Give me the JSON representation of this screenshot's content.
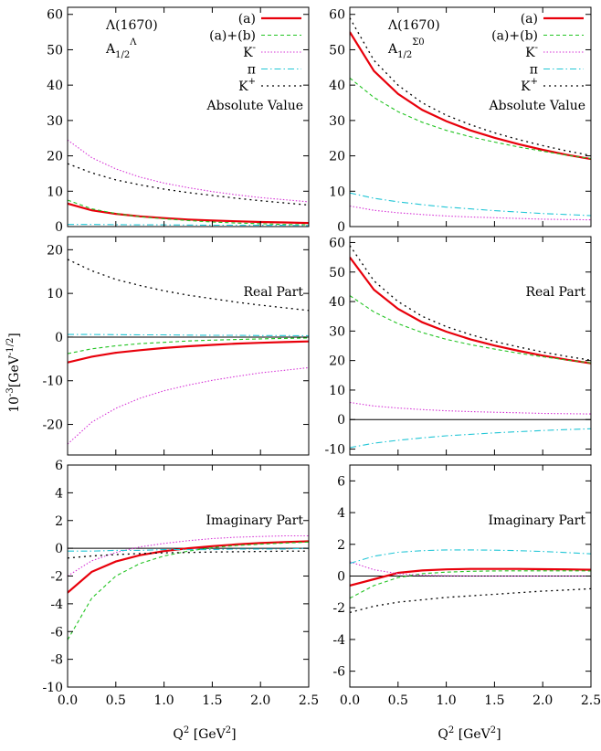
{
  "figure": {
    "ylabel_main": "10",
    "ylabel_sup1": "-3",
    "ylabel_mid": "[GeV",
    "ylabel_sup2": "-1/2",
    "ylabel_end": "]",
    "xlabel_main": "Q",
    "xlabel_sup1": "2",
    "xlabel_mid": " [GeV",
    "xlabel_sup2": "2",
    "xlabel_end": "]"
  },
  "colors": {
    "a": "#e8000b",
    "ab": "#22c422",
    "kminus": "#d633d6",
    "pi": "#22c6d6",
    "kplus": "#000000"
  },
  "legend_entries": [
    {
      "key": "a",
      "label": "(a)",
      "sup": ""
    },
    {
      "key": "ab",
      "label": "(a)+(b)",
      "sup": ""
    },
    {
      "key": "kminus",
      "label": "K",
      "sup": "-"
    },
    {
      "key": "pi",
      "label": "π",
      "sup": ""
    },
    {
      "key": "kplus",
      "label": "K",
      "sup": "+"
    }
  ],
  "chart_data": [
    {
      "type": "line",
      "col": 0,
      "row": 0,
      "title": "Absolute Value",
      "state_label": "Λ(1670)",
      "amp_label": "A",
      "amp_sub": "1/2",
      "amp_sup": "Λ",
      "legend": true,
      "xlim": [
        0,
        2.5
      ],
      "ylim": [
        0,
        62
      ],
      "xticks": [],
      "yticks": [
        0,
        10,
        20,
        30,
        40,
        50,
        60
      ],
      "x": [
        0,
        0.25,
        0.5,
        0.75,
        1.0,
        1.25,
        1.5,
        1.75,
        2.0,
        2.25,
        2.5
      ],
      "series": [
        {
          "key": "a",
          "values": [
            6.5,
            4.6,
            3.6,
            2.9,
            2.4,
            2.0,
            1.7,
            1.5,
            1.3,
            1.15,
            1.0
          ]
        },
        {
          "key": "ab",
          "values": [
            7.5,
            5.0,
            3.7,
            2.8,
            2.2,
            1.7,
            1.3,
            1.0,
            0.8,
            0.6,
            0.5
          ]
        },
        {
          "key": "kminus",
          "values": [
            24.5,
            19.5,
            16.3,
            14.0,
            12.3,
            11.0,
            9.9,
            9.0,
            8.2,
            7.6,
            7.0
          ]
        },
        {
          "key": "pi",
          "values": [
            0.6,
            0.6,
            0.55,
            0.5,
            0.5,
            0.45,
            0.4,
            0.4,
            0.35,
            0.35,
            0.3
          ]
        },
        {
          "key": "kplus",
          "values": [
            17.8,
            15.2,
            13.2,
            11.8,
            10.6,
            9.6,
            8.8,
            8.0,
            7.3,
            6.7,
            6.1
          ]
        }
      ]
    },
    {
      "type": "line",
      "col": 1,
      "row": 0,
      "title": "Absolute Value",
      "state_label": "Λ(1670)",
      "amp_label": "A",
      "amp_sub": "1/2",
      "amp_sup": "Σ0",
      "legend": true,
      "xlim": [
        0,
        2.5
      ],
      "ylim": [
        0,
        62
      ],
      "xticks": [],
      "yticks": [
        0,
        10,
        20,
        30,
        40,
        50,
        60
      ],
      "x": [
        0,
        0.25,
        0.5,
        0.75,
        1.0,
        1.25,
        1.5,
        1.75,
        2.0,
        2.25,
        2.5
      ],
      "series": [
        {
          "key": "a",
          "values": [
            55,
            44,
            37.5,
            33,
            29.8,
            27.2,
            25.1,
            23.3,
            21.7,
            20.3,
            19.1
          ]
        },
        {
          "key": "ab",
          "values": [
            42,
            36.5,
            32.5,
            29.5,
            27.2,
            25.4,
            23.9,
            22.5,
            21.3,
            20.2,
            19.2
          ]
        },
        {
          "key": "kminus",
          "values": [
            5.8,
            4.6,
            3.9,
            3.4,
            3.0,
            2.7,
            2.5,
            2.3,
            2.1,
            2.0,
            1.9
          ]
        },
        {
          "key": "pi",
          "values": [
            9.5,
            8.0,
            7.0,
            6.2,
            5.5,
            5.0,
            4.5,
            4.1,
            3.7,
            3.4,
            3.1
          ]
        },
        {
          "key": "kplus",
          "values": [
            59,
            47,
            40,
            35,
            31.5,
            28.8,
            26.5,
            24.6,
            22.9,
            21.4,
            20.1
          ]
        }
      ]
    },
    {
      "type": "line",
      "col": 0,
      "row": 1,
      "title": "Real Part",
      "legend": false,
      "xlim": [
        0,
        2.5
      ],
      "ylim": [
        -27,
        23
      ],
      "xticks": [],
      "yticks": [
        -20,
        -10,
        0,
        10,
        20
      ],
      "x": [
        0,
        0.25,
        0.5,
        0.75,
        1.0,
        1.25,
        1.5,
        1.75,
        2.0,
        2.25,
        2.5
      ],
      "series": [
        {
          "key": "a",
          "values": [
            -5.8,
            -4.5,
            -3.6,
            -3.0,
            -2.5,
            -2.1,
            -1.8,
            -1.5,
            -1.3,
            -1.15,
            -1.0
          ]
        },
        {
          "key": "ab",
          "values": [
            -3.8,
            -2.7,
            -2.0,
            -1.5,
            -1.2,
            -0.9,
            -0.7,
            -0.55,
            -0.4,
            -0.3,
            -0.2
          ]
        },
        {
          "key": "kminus",
          "values": [
            -24.5,
            -19.5,
            -16.3,
            -14.0,
            -12.3,
            -11.0,
            -9.9,
            -9.0,
            -8.2,
            -7.6,
            -7.0
          ]
        },
        {
          "key": "pi",
          "values": [
            0.6,
            0.6,
            0.55,
            0.5,
            0.5,
            0.45,
            0.4,
            0.4,
            0.35,
            0.35,
            0.3
          ]
        },
        {
          "key": "kplus",
          "values": [
            17.8,
            15.2,
            13.2,
            11.8,
            10.6,
            9.6,
            8.8,
            8.0,
            7.3,
            6.7,
            6.1
          ]
        }
      ]
    },
    {
      "type": "line",
      "col": 1,
      "row": 1,
      "title": "Real Part",
      "legend": false,
      "xlim": [
        0,
        2.5
      ],
      "ylim": [
        -12,
        62
      ],
      "xticks": [],
      "yticks": [
        -10,
        0,
        10,
        20,
        30,
        40,
        50,
        60
      ],
      "x": [
        0,
        0.25,
        0.5,
        0.75,
        1.0,
        1.25,
        1.5,
        1.75,
        2.0,
        2.25,
        2.5
      ],
      "series": [
        {
          "key": "a",
          "values": [
            55,
            44,
            37.5,
            33,
            29.8,
            27.2,
            25.1,
            23.3,
            21.7,
            20.3,
            19.1
          ]
        },
        {
          "key": "ab",
          "values": [
            42,
            36.5,
            32.5,
            29.5,
            27.2,
            25.4,
            23.9,
            22.5,
            21.3,
            20.2,
            19.2
          ]
        },
        {
          "key": "kminus",
          "values": [
            5.8,
            4.6,
            3.9,
            3.4,
            3.0,
            2.7,
            2.5,
            2.3,
            2.1,
            2.0,
            1.9
          ]
        },
        {
          "key": "pi",
          "values": [
            -9.5,
            -8.0,
            -7.0,
            -6.2,
            -5.5,
            -5.0,
            -4.5,
            -4.1,
            -3.7,
            -3.4,
            -3.1
          ]
        },
        {
          "key": "kplus",
          "values": [
            59,
            47,
            40,
            35,
            31.5,
            28.8,
            26.5,
            24.6,
            22.9,
            21.4,
            20.1
          ]
        }
      ]
    },
    {
      "type": "line",
      "col": 0,
      "row": 2,
      "title": "Imaginary Part",
      "legend": false,
      "xlim": [
        0,
        2.5
      ],
      "ylim": [
        -10,
        6
      ],
      "xticks": [
        0.0,
        0.5,
        1.0,
        1.5,
        2.0,
        2.5
      ],
      "xtick_labels": [
        "0.0",
        "0.5",
        "1.0",
        "1.5",
        "2.0",
        "2.5"
      ],
      "yticks": [
        -10,
        -8,
        -6,
        -4,
        -2,
        0,
        2,
        4,
        6
      ],
      "x": [
        0,
        0.25,
        0.5,
        0.75,
        1.0,
        1.25,
        1.5,
        1.75,
        2.0,
        2.25,
        2.5
      ],
      "series": [
        {
          "key": "a",
          "values": [
            -3.2,
            -1.7,
            -0.95,
            -0.5,
            -0.2,
            0.0,
            0.15,
            0.28,
            0.38,
            0.45,
            0.5
          ]
        },
        {
          "key": "ab",
          "values": [
            -6.6,
            -3.6,
            -2.0,
            -1.1,
            -0.55,
            -0.2,
            0.05,
            0.2,
            0.3,
            0.38,
            0.45
          ]
        },
        {
          "key": "kminus",
          "values": [
            -2.0,
            -0.9,
            -0.3,
            0.1,
            0.35,
            0.55,
            0.7,
            0.8,
            0.85,
            0.9,
            0.9
          ]
        },
        {
          "key": "pi",
          "values": [
            -0.2,
            -0.2,
            -0.15,
            -0.15,
            -0.1,
            -0.1,
            -0.1,
            -0.05,
            -0.05,
            -0.05,
            0.0
          ]
        },
        {
          "key": "kplus",
          "values": [
            -0.7,
            -0.55,
            -0.45,
            -0.38,
            -0.33,
            -0.3,
            -0.27,
            -0.25,
            -0.23,
            -0.21,
            -0.2
          ]
        }
      ]
    },
    {
      "type": "line",
      "col": 1,
      "row": 2,
      "title": "Imaginary Part",
      "legend": false,
      "xlim": [
        0,
        2.5
      ],
      "ylim": [
        -7,
        7
      ],
      "xticks": [
        0.0,
        0.5,
        1.0,
        1.5,
        2.0,
        2.5
      ],
      "xtick_labels": [
        "0.0",
        "0.5",
        "1.0",
        "1.5",
        "2.0",
        "2.5"
      ],
      "yticks": [
        -6,
        -4,
        -2,
        0,
        2,
        4,
        6
      ],
      "x": [
        0,
        0.25,
        0.5,
        0.75,
        1.0,
        1.25,
        1.5,
        1.75,
        2.0,
        2.25,
        2.5
      ],
      "series": [
        {
          "key": "a",
          "values": [
            -0.6,
            -0.2,
            0.2,
            0.35,
            0.42,
            0.45,
            0.45,
            0.45,
            0.43,
            0.42,
            0.4
          ]
        },
        {
          "key": "ab",
          "values": [
            -1.4,
            -0.6,
            -0.1,
            0.15,
            0.25,
            0.3,
            0.32,
            0.33,
            0.33,
            0.33,
            0.32
          ]
        },
        {
          "key": "kminus",
          "values": [
            0.9,
            0.4,
            0.15,
            0.05,
            0.02,
            0.0,
            0.0,
            0.0,
            0.0,
            0.0,
            0.0
          ]
        },
        {
          "key": "pi",
          "values": [
            0.8,
            1.25,
            1.5,
            1.6,
            1.65,
            1.65,
            1.63,
            1.6,
            1.55,
            1.48,
            1.4
          ]
        },
        {
          "key": "kplus",
          "values": [
            -2.3,
            -1.9,
            -1.65,
            -1.5,
            -1.35,
            -1.25,
            -1.15,
            -1.05,
            -0.95,
            -0.88,
            -0.8
          ]
        }
      ]
    }
  ]
}
